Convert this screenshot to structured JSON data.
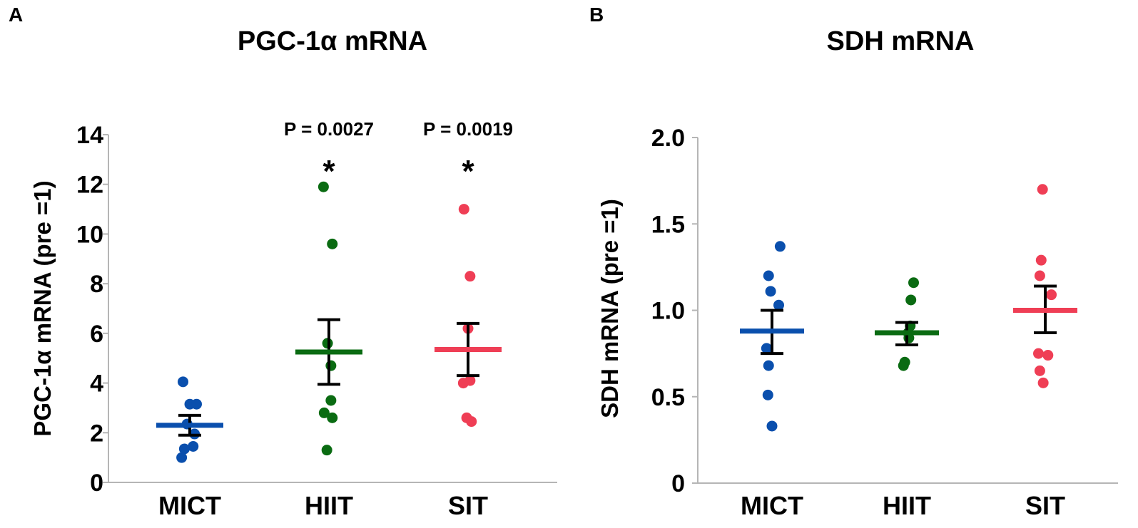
{
  "chart_data": [
    {
      "panel_label": "A",
      "type": "scatter",
      "title": "PGC-1α mRNA",
      "xlabel": "",
      "ylabel": "PGC-1α mRNA (pre =1)",
      "categories": [
        "MICT",
        "HIIT",
        "SIT"
      ],
      "ylim": [
        0,
        14
      ],
      "yticks": [
        0,
        2,
        4,
        6,
        8,
        10,
        12,
        14
      ],
      "ytick_labels": [
        "0",
        "2",
        "4",
        "6",
        "8",
        "10",
        "12",
        "14"
      ],
      "series": [
        {
          "name": "MICT",
          "color": "#0a4fad",
          "points": [
            {
              "x": -0.1,
              "y": 4.05
            },
            {
              "x": 0.0,
              "y": 3.15
            },
            {
              "x": 0.1,
              "y": 3.15
            },
            {
              "x": -0.04,
              "y": 2.35
            },
            {
              "x": 0.07,
              "y": 1.95
            },
            {
              "x": 0.05,
              "y": 1.45
            },
            {
              "x": -0.08,
              "y": 1.35
            },
            {
              "x": -0.12,
              "y": 1.0
            }
          ],
          "mean": 2.3,
          "sem_low": 1.9,
          "sem_high": 2.7
        },
        {
          "name": "HIIT",
          "color": "#0a6b12",
          "points": [
            {
              "x": -0.08,
              "y": 11.9
            },
            {
              "x": 0.05,
              "y": 9.6
            },
            {
              "x": -0.02,
              "y": 5.6
            },
            {
              "x": 0.03,
              "y": 4.7
            },
            {
              "x": 0.03,
              "y": 3.3
            },
            {
              "x": -0.07,
              "y": 2.8
            },
            {
              "x": 0.05,
              "y": 2.6
            },
            {
              "x": -0.03,
              "y": 1.3
            }
          ],
          "mean": 5.25,
          "sem_low": 3.95,
          "sem_high": 6.55
        },
        {
          "name": "SIT",
          "color": "#ef3e55",
          "points": [
            {
              "x": -0.06,
              "y": 11.0
            },
            {
              "x": 0.03,
              "y": 8.3
            },
            {
              "x": 0.0,
              "y": 6.2
            },
            {
              "x": -0.07,
              "y": 4.0
            },
            {
              "x": 0.03,
              "y": 4.1
            },
            {
              "x": -0.02,
              "y": 2.6
            },
            {
              "x": 0.05,
              "y": 2.45
            }
          ],
          "mean": 5.35,
          "sem_low": 4.3,
          "sem_high": 6.4
        }
      ],
      "annotations": [
        {
          "category": "HIIT",
          "text": "P = 0.0027",
          "marker": "*"
        },
        {
          "category": "SIT",
          "text": "P = 0.0019",
          "marker": "*"
        }
      ]
    },
    {
      "panel_label": "B",
      "type": "scatter",
      "title": "SDH mRNA",
      "xlabel": "",
      "ylabel": "SDH mRNA (pre =1)",
      "categories": [
        "MICT",
        "HIIT",
        "SIT"
      ],
      "ylim": [
        0,
        2.0
      ],
      "yticks": [
        0,
        0.5,
        1.0,
        1.5,
        2.0
      ],
      "ytick_labels": [
        "0",
        "0.5",
        "1.0",
        "1.5",
        "2.0"
      ],
      "series": [
        {
          "name": "MICT",
          "color": "#0a4fad",
          "points": [
            {
              "x": 0.12,
              "y": 1.37
            },
            {
              "x": -0.05,
              "y": 1.2
            },
            {
              "x": -0.02,
              "y": 1.11
            },
            {
              "x": 0.1,
              "y": 1.03
            },
            {
              "x": -0.08,
              "y": 0.78
            },
            {
              "x": -0.05,
              "y": 0.68
            },
            {
              "x": -0.06,
              "y": 0.51
            },
            {
              "x": 0.0,
              "y": 0.33
            }
          ],
          "mean": 0.88,
          "sem_low": 0.75,
          "sem_high": 1.0
        },
        {
          "name": "HIIT",
          "color": "#0a6b12",
          "points": [
            {
              "x": 0.1,
              "y": 1.16
            },
            {
              "x": 0.06,
              "y": 1.06
            },
            {
              "x": 0.05,
              "y": 0.91
            },
            {
              "x": 0.02,
              "y": 0.87
            },
            {
              "x": 0.03,
              "y": 0.84
            },
            {
              "x": -0.03,
              "y": 0.7
            },
            {
              "x": -0.05,
              "y": 0.68
            }
          ],
          "mean": 0.87,
          "sem_low": 0.8,
          "sem_high": 0.93
        },
        {
          "name": "SIT",
          "color": "#ef3e55",
          "points": [
            {
              "x": -0.04,
              "y": 1.7
            },
            {
              "x": -0.06,
              "y": 1.29
            },
            {
              "x": -0.08,
              "y": 1.2
            },
            {
              "x": 0.09,
              "y": 1.09
            },
            {
              "x": -0.1,
              "y": 0.75
            },
            {
              "x": 0.04,
              "y": 0.74
            },
            {
              "x": -0.08,
              "y": 0.65
            },
            {
              "x": -0.03,
              "y": 0.58
            }
          ],
          "mean": 1.0,
          "sem_low": 0.87,
          "sem_high": 1.14
        }
      ],
      "annotations": []
    }
  ]
}
